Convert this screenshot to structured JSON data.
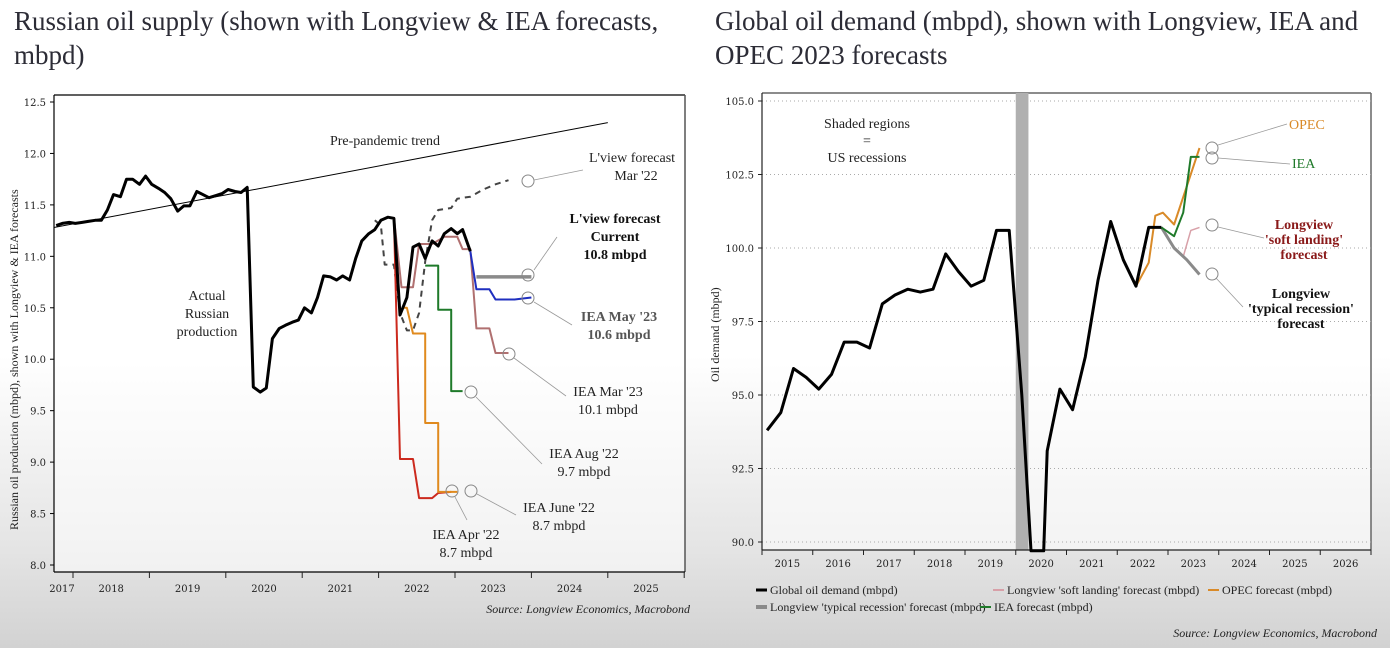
{
  "chart_data": [
    {
      "id": "russian-oil-supply",
      "type": "line",
      "title": "Russian oil supply (shown with Longview & IEA forecasts, mbpd)",
      "ylabel": "Russian oil production (mbpd), shown with Longview & IEA forecasts",
      "xlabel": "",
      "ylim": [
        8.0,
        12.5
      ],
      "yticks": [
        "12.5",
        "12.0",
        "11.5",
        "11.0",
        "10.5",
        "10.0",
        "9.5",
        "9.0",
        "8.5",
        "8.0"
      ],
      "ytick_values": [
        12.5,
        12.0,
        11.5,
        11.0,
        10.5,
        10.0,
        9.5,
        9.0,
        8.5,
        8.0
      ],
      "xlim": [
        2017.75,
        2026.0
      ],
      "xticks": [
        "2017",
        "2018",
        "2019",
        "2020",
        "2021",
        "2022",
        "2023",
        "2024",
        "2025"
      ],
      "xtick_positions": [
        2017.6,
        2018.5,
        2019.5,
        2020.5,
        2021.5,
        2022.5,
        2023.5,
        2024.5,
        2025.5
      ],
      "grid": false,
      "series": [
        {
          "name": "Actual Russian production",
          "color": "#000000",
          "style": "solid",
          "points": [
            [
              2017.78,
              11.3
            ],
            [
              2017.86,
              11.32
            ],
            [
              2017.95,
              11.33
            ],
            [
              2018.03,
              11.32
            ],
            [
              2018.12,
              11.33
            ],
            [
              2018.2,
              11.34
            ],
            [
              2018.29,
              11.35
            ],
            [
              2018.37,
              11.35
            ],
            [
              2018.45,
              11.45
            ],
            [
              2018.53,
              11.6
            ],
            [
              2018.62,
              11.58
            ],
            [
              2018.7,
              11.75
            ],
            [
              2018.78,
              11.75
            ],
            [
              2018.87,
              11.7
            ],
            [
              2018.95,
              11.78
            ],
            [
              2019.03,
              11.7
            ],
            [
              2019.12,
              11.66
            ],
            [
              2019.2,
              11.62
            ],
            [
              2019.28,
              11.56
            ],
            [
              2019.37,
              11.44
            ],
            [
              2019.45,
              11.49
            ],
            [
              2019.53,
              11.49
            ],
            [
              2019.62,
              11.63
            ],
            [
              2019.7,
              11.6
            ],
            [
              2019.78,
              11.57
            ],
            [
              2019.87,
              11.59
            ],
            [
              2019.95,
              11.61
            ],
            [
              2020.03,
              11.65
            ],
            [
              2020.12,
              11.63
            ],
            [
              2020.2,
              11.62
            ],
            [
              2020.28,
              11.67
            ],
            [
              2020.36,
              9.73
            ],
            [
              2020.45,
              9.68
            ],
            [
              2020.53,
              9.72
            ],
            [
              2020.61,
              10.2
            ],
            [
              2020.7,
              10.3
            ],
            [
              2020.78,
              10.33
            ],
            [
              2020.87,
              10.36
            ],
            [
              2020.95,
              10.38
            ],
            [
              2021.03,
              10.5
            ],
            [
              2021.12,
              10.45
            ],
            [
              2021.2,
              10.6
            ],
            [
              2021.28,
              10.81
            ],
            [
              2021.37,
              10.8
            ],
            [
              2021.45,
              10.77
            ],
            [
              2021.53,
              10.81
            ],
            [
              2021.62,
              10.77
            ],
            [
              2021.7,
              10.98
            ],
            [
              2021.78,
              11.15
            ],
            [
              2021.87,
              11.22
            ],
            [
              2021.95,
              11.26
            ],
            [
              2022.03,
              11.35
            ],
            [
              2022.12,
              11.38
            ],
            [
              2022.2,
              11.37
            ],
            [
              2022.28,
              10.43
            ],
            [
              2022.37,
              10.6
            ],
            [
              2022.45,
              11.09
            ],
            [
              2022.53,
              11.12
            ],
            [
              2022.61,
              10.98
            ],
            [
              2022.7,
              11.15
            ],
            [
              2022.78,
              11.1
            ],
            [
              2022.86,
              11.22
            ],
            [
              2022.95,
              11.27
            ],
            [
              2023.03,
              11.22
            ],
            [
              2023.1,
              11.26
            ],
            [
              2023.2,
              11.05
            ]
          ]
        },
        {
          "name": "Pre-pandemic trend",
          "color": "#000000",
          "style": "thin",
          "points": [
            [
              2017.75,
              11.28
            ],
            [
              2025.0,
              12.3
            ]
          ]
        },
        {
          "name": "L'view forecast Mar '22",
          "color": "#444444",
          "style": "dashed",
          "points": [
            [
              2021.95,
              11.35
            ],
            [
              2022.03,
              11.3
            ],
            [
              2022.08,
              10.92
            ],
            [
              2022.2,
              10.92
            ],
            [
              2022.28,
              10.45
            ],
            [
              2022.37,
              10.28
            ],
            [
              2022.45,
              10.28
            ],
            [
              2022.53,
              10.45
            ],
            [
              2022.61,
              10.95
            ],
            [
              2022.7,
              11.35
            ],
            [
              2022.78,
              11.45
            ],
            [
              2022.95,
              11.47
            ],
            [
              2023.03,
              11.56
            ],
            [
              2023.2,
              11.58
            ],
            [
              2023.37,
              11.65
            ],
            [
              2023.53,
              11.7
            ],
            [
              2023.7,
              11.74
            ]
          ]
        },
        {
          "name": "IEA Apr '22",
          "color": "#cc2a1e",
          "style": "solid",
          "points": [
            [
              2022.2,
              11.38
            ],
            [
              2022.28,
              9.03
            ],
            [
              2022.45,
              9.03
            ],
            [
              2022.53,
              8.65
            ],
            [
              2022.7,
              8.65
            ],
            [
              2022.78,
              8.7
            ],
            [
              2022.95,
              8.71
            ]
          ]
        },
        {
          "name": "IEA June '22",
          "color": "#e08a1e",
          "style": "solid",
          "points": [
            [
              2022.3,
              10.5
            ],
            [
              2022.37,
              10.5
            ],
            [
              2022.45,
              10.25
            ],
            [
              2022.61,
              10.25
            ],
            [
              2022.61,
              9.38
            ],
            [
              2022.78,
              9.38
            ],
            [
              2022.78,
              8.71
            ],
            [
              2023.03,
              8.71
            ]
          ]
        },
        {
          "name": "IEA Aug '22",
          "color": "#1f7a2a",
          "style": "solid",
          "points": [
            [
              2022.61,
              10.91
            ],
            [
              2022.78,
              10.91
            ],
            [
              2022.78,
              10.48
            ],
            [
              2022.95,
              10.48
            ],
            [
              2022.95,
              9.69
            ],
            [
              2023.1,
              9.69
            ]
          ]
        },
        {
          "name": "IEA Mar '23",
          "color": "#b07070",
          "style": "solid",
          "points": [
            [
              2022.2,
              11.38
            ],
            [
              2022.3,
              10.7
            ],
            [
              2022.45,
              10.7
            ],
            [
              2022.53,
              11.12
            ],
            [
              2022.7,
              11.12
            ],
            [
              2022.86,
              11.19
            ],
            [
              2023.03,
              11.19
            ],
            [
              2023.1,
              11.07
            ],
            [
              2023.2,
              11.07
            ],
            [
              2023.28,
              10.3
            ],
            [
              2023.45,
              10.3
            ],
            [
              2023.53,
              10.06
            ],
            [
              2023.7,
              10.06
            ]
          ]
        },
        {
          "name": "IEA May '23",
          "color": "#1f2fbf",
          "style": "solid",
          "points": [
            [
              2023.2,
              11.05
            ],
            [
              2023.28,
              10.68
            ],
            [
              2023.45,
              10.68
            ],
            [
              2023.53,
              10.58
            ],
            [
              2023.78,
              10.58
            ],
            [
              2024.0,
              10.6
            ]
          ]
        },
        {
          "name": "L'view forecast Current",
          "color": "#8a8a8a",
          "style": "thick",
          "points": [
            [
              2023.28,
              10.8
            ],
            [
              2024.0,
              10.8
            ]
          ]
        }
      ],
      "annotations": [
        {
          "text": [
            "Pre-pandemic trend"
          ],
          "bold": false
        },
        {
          "text": [
            "L'view forecast",
            "Mar '22"
          ],
          "bold": false
        },
        {
          "text": [
            "L'view forecast",
            "Current",
            "10.8 mbpd"
          ],
          "bold": true
        },
        {
          "text": [
            "IEA May '23",
            "10.6 mbpd"
          ],
          "bold": true,
          "color": "#555555"
        },
        {
          "text": [
            "IEA Mar '23",
            "10.1 mbpd"
          ],
          "bold": false
        },
        {
          "text": [
            "IEA Aug '22",
            "9.7 mbpd"
          ],
          "bold": false
        },
        {
          "text": [
            "IEA June '22",
            "8.7 mbpd"
          ],
          "bold": false
        },
        {
          "text": [
            "IEA Apr '22",
            "8.7 mbpd"
          ],
          "bold": false
        },
        {
          "text": [
            "Actual",
            "Russian",
            "production"
          ],
          "bold": false
        }
      ],
      "source": "Source: Longview Economics, Macrobond"
    },
    {
      "id": "global-oil-demand",
      "type": "line",
      "title": "Global oil demand (mbpd), shown with Longview, IEA and OPEC 2023 forecasts",
      "ylabel": "Oil demand (mbpd)",
      "xlabel": "",
      "ylim": [
        90.0,
        105.0
      ],
      "yticks": [
        "105.0",
        "102.5",
        "100.0",
        "97.5",
        "95.0",
        "92.5",
        "90.0"
      ],
      "ytick_values": [
        105.0,
        102.5,
        100.0,
        97.5,
        95.0,
        92.5,
        90.0
      ],
      "xlim": [
        2015.0,
        2027.0
      ],
      "xticks": [
        "2015",
        "2016",
        "2017",
        "2018",
        "2019",
        "2020",
        "2021",
        "2022",
        "2023",
        "2024",
        "2025",
        "2026"
      ],
      "grid": true,
      "shaded_regions": [
        {
          "label": "US recession",
          "from": 2020.0,
          "to": 2020.25
        }
      ],
      "series": [
        {
          "name": "Global oil demand (mbpd)",
          "color": "#000000",
          "points": [
            [
              2015.1,
              93.8
            ],
            [
              2015.37,
              94.4
            ],
            [
              2015.62,
              95.9
            ],
            [
              2015.87,
              95.6
            ],
            [
              2016.12,
              95.2
            ],
            [
              2016.37,
              95.7
            ],
            [
              2016.62,
              96.8
            ],
            [
              2016.87,
              96.8
            ],
            [
              2017.12,
              96.6
            ],
            [
              2017.37,
              98.1
            ],
            [
              2017.62,
              98.4
            ],
            [
              2017.87,
              98.6
            ],
            [
              2018.12,
              98.5
            ],
            [
              2018.37,
              98.6
            ],
            [
              2018.62,
              99.8
            ],
            [
              2018.87,
              99.2
            ],
            [
              2019.12,
              98.7
            ],
            [
              2019.37,
              98.9
            ],
            [
              2019.62,
              100.6
            ],
            [
              2019.87,
              100.6
            ],
            [
              2020.12,
              95.0
            ],
            [
              2020.3,
              89.5
            ],
            [
              2020.55,
              89.5
            ],
            [
              2020.62,
              93.1
            ],
            [
              2020.87,
              95.2
            ],
            [
              2021.12,
              94.5
            ],
            [
              2021.37,
              96.3
            ],
            [
              2021.62,
              98.9
            ],
            [
              2021.87,
              100.9
            ],
            [
              2022.12,
              99.6
            ],
            [
              2022.37,
              98.7
            ],
            [
              2022.62,
              100.7
            ],
            [
              2022.87,
              100.7
            ]
          ]
        },
        {
          "name": "Longview 'typical recession' forecast (mbpd)",
          "color": "#8a8a8a",
          "points": [
            [
              2022.87,
              100.7
            ],
            [
              2023.12,
              100.0
            ],
            [
              2023.37,
              99.6
            ],
            [
              2023.62,
              99.1
            ]
          ]
        },
        {
          "name": "Longview 'soft landing' forecast (mbpd)",
          "color": "#d8a0a8",
          "points": [
            [
              2023.3,
              99.7
            ],
            [
              2023.45,
              100.6
            ],
            [
              2023.62,
              100.7
            ]
          ]
        },
        {
          "name": "OPEC forecast (mbpd)",
          "color": "#d98a28",
          "points": [
            [
              2022.37,
              98.7
            ],
            [
              2022.62,
              99.5
            ],
            [
              2022.75,
              101.1
            ],
            [
              2022.9,
              101.2
            ],
            [
              2023.12,
              100.8
            ],
            [
              2023.37,
              102.1
            ],
            [
              2023.62,
              103.4
            ]
          ]
        },
        {
          "name": "IEA forecast (mbpd)",
          "color": "#1f7a2a",
          "points": [
            [
              2022.87,
              100.7
            ],
            [
              2023.12,
              100.4
            ],
            [
              2023.3,
              101.2
            ],
            [
              2023.45,
              103.1
            ],
            [
              2023.62,
              103.1
            ]
          ]
        }
      ],
      "annotations": [
        {
          "text": [
            "Shaded regions",
            "=",
            "US recessions"
          ],
          "bold": false
        },
        {
          "text": [
            "OPEC"
          ],
          "color": "#d98a28"
        },
        {
          "text": [
            "IEA"
          ],
          "color": "#1f7a2a"
        },
        {
          "text": [
            "Longview",
            "'soft landing'",
            "forecast"
          ],
          "bold": true,
          "color": "#8a1a1a"
        },
        {
          "text": [
            "Longview",
            "'typical recession'",
            "forecast"
          ],
          "bold": true,
          "color": "#111111"
        }
      ],
      "legend": {
        "placement": "bottom",
        "entries": [
          {
            "label": "Global oil demand (mbpd)",
            "color": "#000000"
          },
          {
            "label": "Longview 'soft landing' forecast (mbpd)",
            "color": "#d8a0a8"
          },
          {
            "label": "OPEC forecast (mbpd)",
            "color": "#d98a28"
          },
          {
            "label": "Longview 'typical recession' forecast (mbpd)",
            "color": "#8a8a8a"
          },
          {
            "label": "IEA forecast (mbpd)",
            "color": "#1f7a2a"
          }
        ]
      },
      "source": "Source: Longview Economics, Macrobond"
    }
  ]
}
